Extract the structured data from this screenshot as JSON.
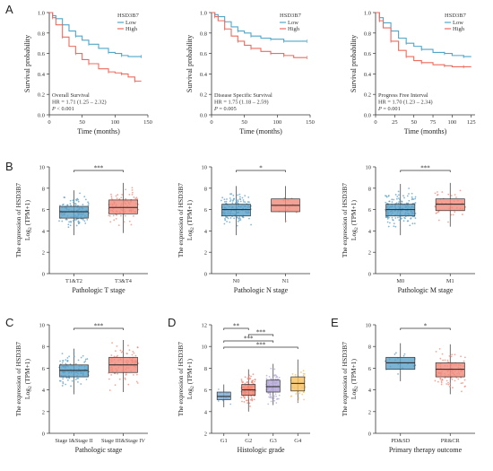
{
  "panel_letters": [
    "A",
    "B",
    "C",
    "D",
    "E"
  ],
  "colors": {
    "low": "#4fa6c9",
    "high": "#ef6b5e",
    "box_blue": "#5aa0c8",
    "box_red": "#f08a7a",
    "g1": "#7aa8cf",
    "g2": "#f0826f",
    "g3": "#b4a8d6",
    "g4": "#f6bf5c"
  },
  "chart_data": [
    {
      "id": "km1",
      "type": "line",
      "panel": "A",
      "title": "",
      "xlabel": "Time (months)",
      "ylabel": "Survival probability",
      "xlim": [
        0,
        150
      ],
      "ylim": [
        0,
        1
      ],
      "xticks": [
        "0",
        "50",
        "100",
        "150"
      ],
      "yticks": [
        "0.0",
        "0.2",
        "0.4",
        "0.6",
        "0.8",
        "1.0"
      ],
      "legend_title": "HSD3B7",
      "legend_position": "top-right",
      "annotations": [
        "Overall Survival",
        "HR = 1.71 (1.25 – 2.32)",
        "P < 0.001"
      ],
      "series": [
        {
          "name": "Low",
          "color": "#4fa6c9",
          "x": [
            0,
            5,
            10,
            20,
            30,
            40,
            50,
            60,
            75,
            90,
            100,
            110,
            120,
            140
          ],
          "y": [
            1.0,
            0.97,
            0.94,
            0.88,
            0.82,
            0.77,
            0.73,
            0.69,
            0.65,
            0.61,
            0.6,
            0.58,
            0.57,
            0.57
          ]
        },
        {
          "name": "High",
          "color": "#ef6b5e",
          "x": [
            0,
            5,
            10,
            20,
            30,
            40,
            50,
            60,
            75,
            90,
            100,
            110,
            120,
            130,
            140
          ],
          "y": [
            1.0,
            0.95,
            0.88,
            0.76,
            0.67,
            0.6,
            0.54,
            0.5,
            0.45,
            0.42,
            0.41,
            0.4,
            0.37,
            0.33,
            0.33
          ]
        }
      ]
    },
    {
      "id": "km2",
      "type": "line",
      "panel": "A",
      "title": "",
      "xlabel": "Time (months)",
      "ylabel": "Survival probability",
      "xlim": [
        0,
        150
      ],
      "ylim": [
        0,
        1
      ],
      "xticks": [
        "0",
        "50",
        "100",
        "150"
      ],
      "yticks": [
        "0.0",
        "0.2",
        "0.4",
        "0.6",
        "0.8",
        "1.0"
      ],
      "legend_title": "HSD3B7",
      "legend_position": "top-right",
      "annotations": [
        "Disease Specific Survival",
        "HR = 1.75 (1.18 – 2.59)",
        "P = 0.005"
      ],
      "series": [
        {
          "name": "Low",
          "color": "#4fa6c9",
          "x": [
            0,
            5,
            10,
            20,
            30,
            40,
            50,
            60,
            75,
            90,
            100,
            110,
            125,
            145
          ],
          "y": [
            1.0,
            0.98,
            0.96,
            0.91,
            0.86,
            0.82,
            0.8,
            0.77,
            0.75,
            0.74,
            0.74,
            0.72,
            0.72,
            0.72
          ]
        },
        {
          "name": "High",
          "color": "#ef6b5e",
          "x": [
            0,
            5,
            10,
            20,
            30,
            40,
            50,
            60,
            75,
            90,
            100,
            110,
            125,
            145
          ],
          "y": [
            1.0,
            0.96,
            0.92,
            0.84,
            0.77,
            0.72,
            0.68,
            0.65,
            0.62,
            0.6,
            0.6,
            0.58,
            0.56,
            0.56
          ]
        }
      ]
    },
    {
      "id": "km3",
      "type": "line",
      "panel": "A",
      "title": "",
      "xlabel": "Time (months)",
      "ylabel": "Survival probability",
      "xlim": [
        0,
        130
      ],
      "ylim": [
        0,
        1
      ],
      "xticks": [
        "0",
        "25",
        "50",
        "75",
        "100",
        "125"
      ],
      "yticks": [
        "0.0",
        "0.2",
        "0.4",
        "0.6",
        "0.8",
        "1.0"
      ],
      "legend_title": "HSD3B7",
      "legend_position": "top-right",
      "annotations": [
        "Progress Free Interval",
        "HR = 1.70 (1.23 – 2.34)",
        "P = 0.001"
      ],
      "series": [
        {
          "name": "Low",
          "color": "#4fa6c9",
          "x": [
            0,
            5,
            10,
            20,
            30,
            40,
            50,
            60,
            75,
            90,
            100,
            115,
            125
          ],
          "y": [
            1.0,
            0.95,
            0.9,
            0.82,
            0.75,
            0.7,
            0.67,
            0.64,
            0.61,
            0.6,
            0.58,
            0.57,
            0.57
          ]
        },
        {
          "name": "High",
          "color": "#ef6b5e",
          "x": [
            0,
            5,
            10,
            20,
            30,
            40,
            50,
            60,
            75,
            90,
            100,
            115,
            125
          ],
          "y": [
            1.0,
            0.92,
            0.85,
            0.72,
            0.63,
            0.57,
            0.53,
            0.51,
            0.49,
            0.48,
            0.47,
            0.47,
            0.47
          ]
        }
      ]
    },
    {
      "id": "bxT",
      "type": "box",
      "panel": "B",
      "xlabel": "Pathologic T stage",
      "ylabel": "The expression of HSD3B7",
      "ylabel2": "Log2 (TPM+1)",
      "ylim": [
        0,
        10
      ],
      "yticks": [
        "0",
        "2",
        "4",
        "6",
        "8",
        "10"
      ],
      "categories": [
        "T1&T2",
        "T3&T4"
      ],
      "boxes": [
        {
          "q1": 5.2,
          "median": 5.8,
          "q3": 6.3,
          "lo": 3.6,
          "hi": 7.8,
          "color": "#5aa0c8",
          "n": 120
        },
        {
          "q1": 5.6,
          "median": 6.2,
          "q3": 6.9,
          "lo": 3.8,
          "hi": 8.5,
          "color": "#f08a7a",
          "n": 95
        }
      ],
      "brackets": [
        {
          "from": 0,
          "to": 1,
          "label": "***"
        }
      ]
    },
    {
      "id": "bxN",
      "type": "box",
      "panel": "B",
      "xlabel": "Pathologic N stage",
      "ylabel": "The expression of HSD3B7",
      "ylabel2": "Log2 (TPM+1)",
      "ylim": [
        0,
        10
      ],
      "yticks": [
        "0",
        "2",
        "4",
        "6",
        "8",
        "10"
      ],
      "categories": [
        "N0",
        "N1"
      ],
      "boxes": [
        {
          "q1": 5.4,
          "median": 6.0,
          "q3": 6.5,
          "lo": 3.6,
          "hi": 8.2,
          "color": "#5aa0c8",
          "n": 150
        },
        {
          "q1": 5.8,
          "median": 6.4,
          "q3": 7.0,
          "lo": 4.8,
          "hi": 8.2,
          "color": "#f08a7a",
          "n": 12
        }
      ],
      "brackets": [
        {
          "from": 0,
          "to": 1,
          "label": "*"
        }
      ]
    },
    {
      "id": "bxM",
      "type": "box",
      "panel": "B",
      "xlabel": "Pathologic M stage",
      "ylabel": "The expression of HSD3B7",
      "ylabel2": "Log2 (TPM+1)",
      "ylim": [
        0,
        10
      ],
      "yticks": [
        "0",
        "2",
        "4",
        "6",
        "8",
        "10"
      ],
      "categories": [
        "M0",
        "M1"
      ],
      "boxes": [
        {
          "q1": 5.4,
          "median": 6.0,
          "q3": 6.5,
          "lo": 3.6,
          "hi": 8.4,
          "color": "#5aa0c8",
          "n": 170
        },
        {
          "q1": 5.9,
          "median": 6.5,
          "q3": 7.0,
          "lo": 4.4,
          "hi": 8.5,
          "color": "#f08a7a",
          "n": 40
        }
      ],
      "brackets": [
        {
          "from": 0,
          "to": 1,
          "label": "***"
        }
      ]
    },
    {
      "id": "bxS",
      "type": "box",
      "panel": "C",
      "xlabel": "Pathologic stage",
      "ylabel": "The expression of HSD3B7",
      "ylabel2": "Log2 (TPM+1)",
      "ylim": [
        0,
        10
      ],
      "yticks": [
        "0",
        "2",
        "4",
        "6",
        "8",
        "10"
      ],
      "categories": [
        "Stage I&Stage II",
        "Stage III&Stage IV"
      ],
      "boxes": [
        {
          "q1": 5.2,
          "median": 5.8,
          "q3": 6.3,
          "lo": 3.6,
          "hi": 7.8,
          "color": "#5aa0c8",
          "n": 120
        },
        {
          "q1": 5.6,
          "median": 6.3,
          "q3": 7.0,
          "lo": 3.8,
          "hi": 8.6,
          "color": "#f08a7a",
          "n": 95
        }
      ],
      "brackets": [
        {
          "from": 0,
          "to": 1,
          "label": "***"
        }
      ]
    },
    {
      "id": "bxG",
      "type": "box",
      "panel": "D",
      "xlabel": "Histologic grade",
      "ylabel": "The expression of HSD3B7",
      "ylabel2": "Log2 (TPM+1)",
      "ylim": [
        2,
        12
      ],
      "yticks": [
        "2",
        "4",
        "6",
        "8",
        "10",
        "12"
      ],
      "categories": [
        "G1",
        "G2",
        "G3",
        "G4"
      ],
      "boxes": [
        {
          "q1": 5.1,
          "median": 5.4,
          "q3": 5.8,
          "lo": 4.4,
          "hi": 6.5,
          "color": "#7aa8cf",
          "n": 14
        },
        {
          "q1": 5.5,
          "median": 6.0,
          "q3": 6.5,
          "lo": 4.0,
          "hi": 7.9,
          "color": "#f0826f",
          "n": 110
        },
        {
          "q1": 5.8,
          "median": 6.3,
          "q3": 6.9,
          "lo": 4.6,
          "hi": 8.4,
          "color": "#b4a8d6",
          "n": 100
        },
        {
          "q1": 5.9,
          "median": 6.6,
          "q3": 7.2,
          "lo": 4.8,
          "hi": 8.8,
          "color": "#f6bf5c",
          "n": 40
        }
      ],
      "brackets": [
        {
          "from": 0,
          "to": 1,
          "label": "**"
        },
        {
          "from": 1,
          "to": 2,
          "label": "***"
        },
        {
          "from": 0,
          "to": 2,
          "label": "***"
        },
        {
          "from": 0,
          "to": 3,
          "label": "***"
        }
      ]
    },
    {
      "id": "bxR",
      "type": "box",
      "panel": "E",
      "xlabel": "Primary therapy outcome",
      "ylabel": "The expression of HSD3B7",
      "ylabel2": "Log2 (TPM+1)",
      "ylim": [
        0,
        10
      ],
      "yticks": [
        "0",
        "2",
        "4",
        "6",
        "8",
        "10"
      ],
      "categories": [
        "PD&SD",
        "PR&CR"
      ],
      "boxes": [
        {
          "q1": 5.9,
          "median": 6.5,
          "q3": 7.0,
          "lo": 4.8,
          "hi": 8.3,
          "color": "#5aa0c8",
          "n": 18
        },
        {
          "q1": 5.2,
          "median": 5.9,
          "q3": 6.5,
          "lo": 3.6,
          "hi": 8.2,
          "color": "#f08a7a",
          "n": 110
        }
      ],
      "brackets": [
        {
          "from": 0,
          "to": 1,
          "label": "*"
        }
      ]
    }
  ]
}
